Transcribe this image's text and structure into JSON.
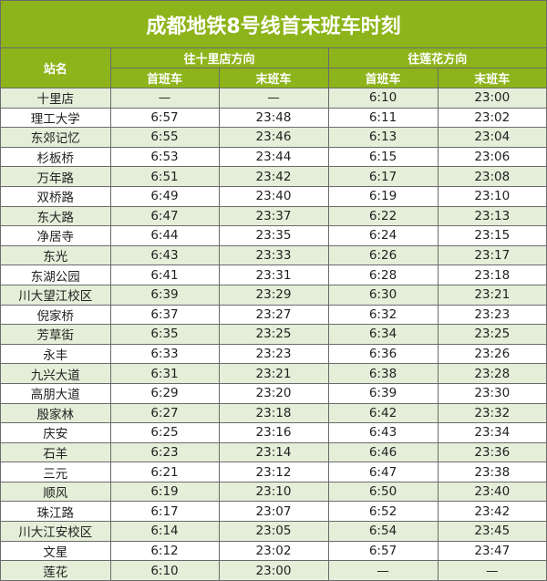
{
  "title": "成都地铁8号线首末班车时刻",
  "headers": {
    "station": "站名",
    "dir1": "往十里店方向",
    "dir2": "往莲花方向",
    "first": "首班车",
    "last": "末班车"
  },
  "colors": {
    "header_green": "#8db41a",
    "alt_row": "#e4eed8"
  },
  "rows": [
    [
      "十里店",
      "—",
      "—",
      "6:10",
      "23:00"
    ],
    [
      "理工大学",
      "6:57",
      "23:48",
      "6:11",
      "23:02"
    ],
    [
      "东郊记忆",
      "6:55",
      "23:46",
      "6:13",
      "23:04"
    ],
    [
      "杉板桥",
      "6:53",
      "23:44",
      "6:15",
      "23:06"
    ],
    [
      "万年路",
      "6:51",
      "23:42",
      "6:17",
      "23:08"
    ],
    [
      "双桥路",
      "6:49",
      "23:40",
      "6:19",
      "23:10"
    ],
    [
      "东大路",
      "6:47",
      "23:37",
      "6:22",
      "23:13"
    ],
    [
      "净居寺",
      "6:44",
      "23:35",
      "6:24",
      "23:15"
    ],
    [
      "东光",
      "6:43",
      "23:33",
      "6:26",
      "23:17"
    ],
    [
      "东湖公园",
      "6:41",
      "23:31",
      "6:28",
      "23:18"
    ],
    [
      "川大望江校区",
      "6:39",
      "23:29",
      "6:30",
      "23:21"
    ],
    [
      "倪家桥",
      "6:37",
      "23:27",
      "6:32",
      "23:23"
    ],
    [
      "芳草街",
      "6:35",
      "23:25",
      "6:34",
      "23:25"
    ],
    [
      "永丰",
      "6:33",
      "23:23",
      "6:36",
      "23:26"
    ],
    [
      "九兴大道",
      "6:31",
      "23:21",
      "6:38",
      "23:28"
    ],
    [
      "高朋大道",
      "6:29",
      "23:20",
      "6:39",
      "23:30"
    ],
    [
      "殷家林",
      "6:27",
      "23:18",
      "6:42",
      "23:32"
    ],
    [
      "庆安",
      "6:25",
      "23:16",
      "6:43",
      "23:34"
    ],
    [
      "石羊",
      "6:23",
      "23:14",
      "6:46",
      "23:36"
    ],
    [
      "三元",
      "6:21",
      "23:12",
      "6:47",
      "23:38"
    ],
    [
      "顺风",
      "6:19",
      "23:10",
      "6:50",
      "23:40"
    ],
    [
      "珠江路",
      "6:17",
      "23:07",
      "6:52",
      "23:42"
    ],
    [
      "川大江安校区",
      "6:14",
      "23:05",
      "6:54",
      "23:45"
    ],
    [
      "文星",
      "6:12",
      "23:02",
      "6:57",
      "23:47"
    ],
    [
      "莲花",
      "6:10",
      "23:00",
      "—",
      "—"
    ]
  ]
}
